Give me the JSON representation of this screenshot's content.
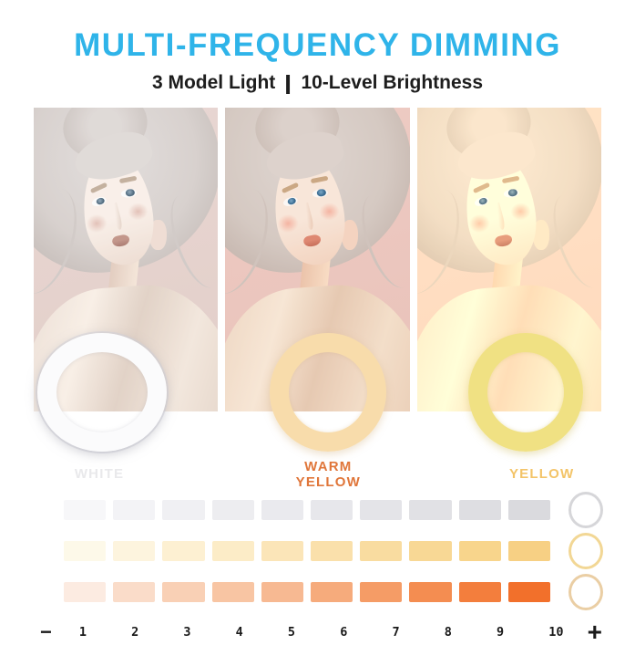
{
  "header": {
    "title": "MULTI-FREQUENCY DIMMING",
    "title_color": "#2fb4e9",
    "subtitle_left": "3 Model Light",
    "separator": "|",
    "subtitle_right": "10-Level Brightness"
  },
  "panels": [
    {
      "mode": "white",
      "label_line1": "WHITE",
      "label_line2": "",
      "label_color": "#e9e9eb",
      "ring_color": "#fbfbfc"
    },
    {
      "mode": "warm-yellow",
      "label_line1": "WARM",
      "label_line2": "YELLOW",
      "label_color": "#e0763a",
      "ring_color": "#f8dcab"
    },
    {
      "mode": "yellow",
      "label_line1": "YELLOW",
      "label_line2": "",
      "label_color": "#f3c468",
      "ring_color": "#f0e183"
    }
  ],
  "brightness_rows": [
    {
      "mode": "white",
      "icon_color": "#d6d6d9",
      "levels": [
        "#f7f7f9",
        "#f3f3f6",
        "#f0f0f3",
        "#ededf0",
        "#eaeaee",
        "#e7e7eb",
        "#e4e4e8",
        "#e1e1e5",
        "#dedee2",
        "#dadade"
      ]
    },
    {
      "mode": "warm-yellow",
      "icon_color": "#f2d795",
      "levels": [
        "#fdf9e9",
        "#fdf4de",
        "#fdf0d2",
        "#fcecc7",
        "#fbe5b8",
        "#fae0ab",
        "#f9dca0",
        "#f8d895",
        "#f8d58c",
        "#f7d084"
      ]
    },
    {
      "mode": "yellow-orange",
      "icon_color": "#eacea4",
      "levels": [
        "#fcebe1",
        "#fadcc9",
        "#f9d0b5",
        "#f8c5a3",
        "#f7b992",
        "#f6ab7c",
        "#f59c66",
        "#f48d51",
        "#f37e3d",
        "#f2702b"
      ]
    }
  ],
  "scale": {
    "minus": "−",
    "plus": "+",
    "numbers": [
      "1",
      "2",
      "3",
      "4",
      "5",
      "6",
      "7",
      "8",
      "9",
      "10"
    ]
  }
}
